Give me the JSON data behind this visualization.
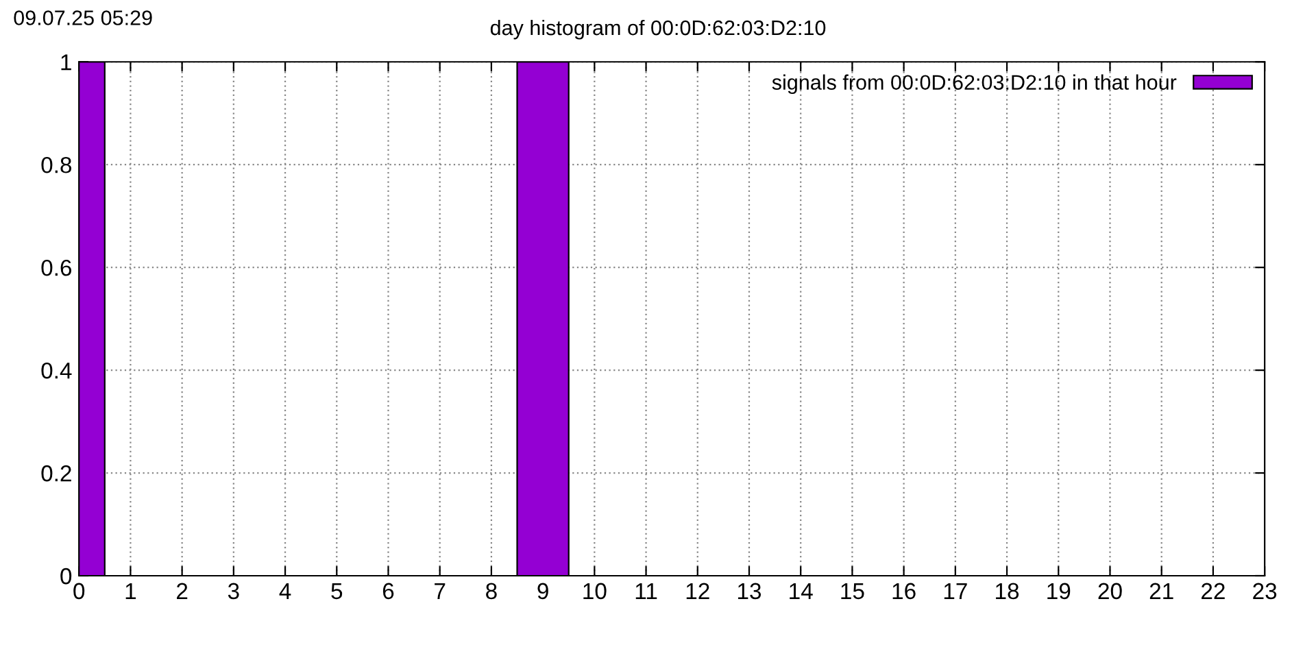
{
  "chart_data": {
    "type": "bar",
    "title": "day histogram of 00:0D:62:03:D2:10",
    "annotations": [
      "09.07.25 05:29"
    ],
    "x": [
      0,
      1,
      2,
      3,
      4,
      5,
      6,
      7,
      8,
      9,
      10,
      11,
      12,
      13,
      14,
      15,
      16,
      17,
      18,
      19,
      20,
      21,
      22,
      23
    ],
    "series": [
      {
        "name": "signals from 00:0D:62:03:D2:10 in that hour",
        "color": "#9400d3",
        "values": [
          1,
          0,
          0,
          0,
          0,
          0,
          0,
          0,
          0,
          1,
          0,
          0,
          0,
          0,
          0,
          0,
          0,
          0,
          0,
          0,
          0,
          0,
          0,
          0
        ]
      }
    ],
    "xlim": [
      0,
      23
    ],
    "xticks": [
      0,
      1,
      2,
      3,
      4,
      5,
      6,
      7,
      8,
      9,
      10,
      11,
      12,
      13,
      14,
      15,
      16,
      17,
      18,
      19,
      20,
      21,
      22,
      23
    ],
    "ylim": [
      0,
      1
    ],
    "yticks": [
      0,
      0.2,
      0.4,
      0.6,
      0.8,
      1
    ],
    "grid": true,
    "legend": "top right"
  }
}
